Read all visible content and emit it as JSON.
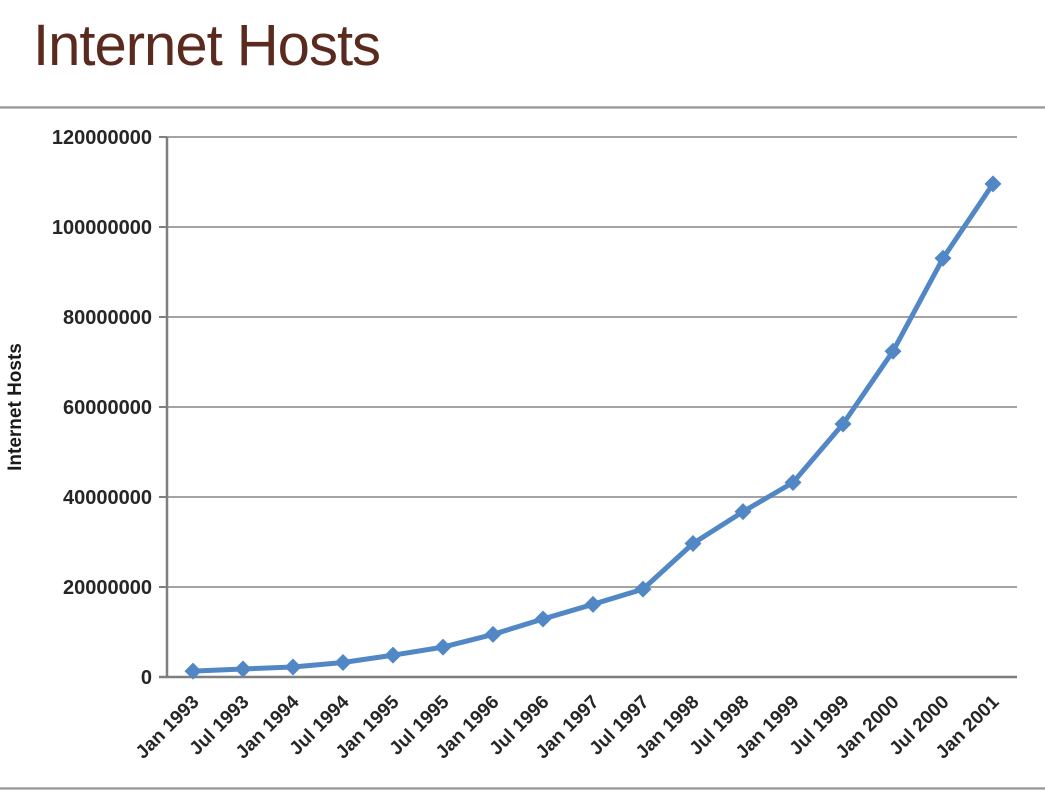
{
  "page": {
    "title": "Internet Hosts",
    "title_color": "#5a2a1e"
  },
  "chart_data": {
    "type": "line",
    "title": "Internet Hosts",
    "xlabel": "",
    "ylabel": "Internet Hosts",
    "categories": [
      "Jan 1993",
      "Jul 1993",
      "Jan 1994",
      "Jul 1994",
      "Jan 1995",
      "Jul 1995",
      "Jan 1996",
      "Jul 1996",
      "Jan 1997",
      "Jul 1997",
      "Jan 1998",
      "Jul 1998",
      "Jan 1999",
      "Jul 1999",
      "Jan 2000",
      "Jul 2000",
      "Jan 2001"
    ],
    "series": [
      {
        "name": "Internet Hosts",
        "values": [
          1313000,
          1776000,
          2217000,
          3212000,
          4852000,
          6642000,
          9472000,
          12881000,
          16146000,
          19540000,
          29670000,
          36739000,
          43230000,
          56218000,
          72398092,
          93047785,
          109574429
        ]
      }
    ],
    "ylim": [
      0,
      120000000
    ],
    "ytick_interval": 20000000,
    "ytick_labels": [
      "0",
      "20000000",
      "40000000",
      "60000000",
      "80000000",
      "100000000",
      "120000000"
    ],
    "grid": "horizontal",
    "legend": "none",
    "marker": "diamond",
    "line_color": "#5287c5",
    "gridline_color": "#a3a3a3",
    "axis_color": "#7f7f7f",
    "tick_label_color": "#262626",
    "axis_title_color": "#1a1a1a"
  }
}
